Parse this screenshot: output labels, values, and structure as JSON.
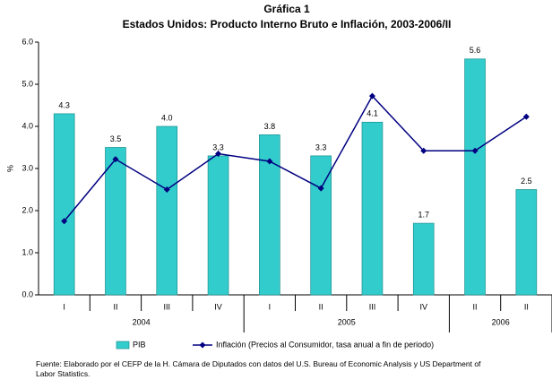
{
  "chart_data": {
    "type": "bar",
    "title": "Gráfica 1",
    "subtitle": "Estados Unidos: Producto Interno Bruto e Inflación, 2003-2006/II",
    "ylabel": "%",
    "groups": [
      {
        "name": "2004",
        "categories": [
          "I",
          "II",
          "III",
          "IV"
        ]
      },
      {
        "name": "2005",
        "categories": [
          "I",
          "II",
          "III",
          "IV"
        ]
      },
      {
        "name": "2006",
        "categories": [
          "II",
          "II"
        ]
      }
    ],
    "series": [
      {
        "name": "PIB",
        "type": "bar",
        "color": "#33cccc",
        "values": [
          4.3,
          3.5,
          4.0,
          3.3,
          3.8,
          3.3,
          4.1,
          1.7,
          5.6,
          2.5
        ],
        "value_labels": [
          "4.3",
          "3.5",
          "4.0",
          "3.3",
          "3.8",
          "3.3",
          "4.1",
          "1.7",
          "5.6",
          "2.5"
        ]
      },
      {
        "name": "Inflación (Precios al Consumidor, tasa anual a fin de periodo)",
        "type": "line",
        "color": "#000080",
        "values": [
          1.75,
          3.22,
          2.5,
          3.35,
          3.17,
          2.53,
          4.72,
          3.42,
          3.42,
          4.23
        ]
      }
    ],
    "ylim": [
      0,
      6
    ],
    "yticks": [
      {
        "value": 0,
        "label": "0.0"
      },
      {
        "value": 1,
        "label": "1.0"
      },
      {
        "value": 2,
        "label": "2.0"
      },
      {
        "value": 3,
        "label": "3.0"
      },
      {
        "value": 4,
        "label": "4.0"
      },
      {
        "value": 5,
        "label": "5.0"
      },
      {
        "value": 6,
        "label": "6.0"
      }
    ],
    "grid": false,
    "source": "Fuente: Elaborado por el CEFP de la H. Cámara de Diputados con datos del  U.S. Bureau of Economic Analysis y US Department of Labor Statistics."
  }
}
